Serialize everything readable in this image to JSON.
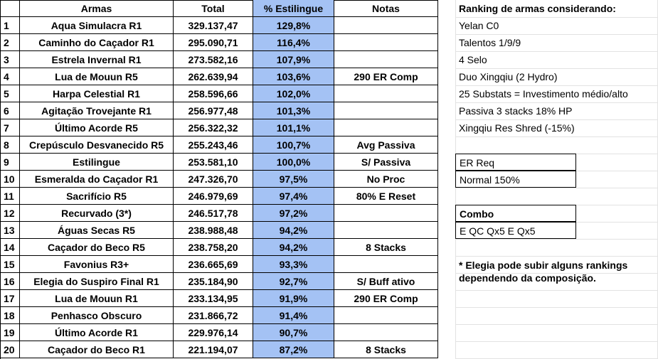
{
  "headers": {
    "num": "",
    "arma": "Armas",
    "total": "Total",
    "pct": "% Estilingue",
    "notas": "Notas"
  },
  "rows": [
    {
      "n": "1",
      "arma": "Aqua Simulacra R1",
      "total": "329.137,47",
      "pct": "129,8%",
      "notas": ""
    },
    {
      "n": "2",
      "arma": "Caminho do Caçador R1",
      "total": "295.090,71",
      "pct": "116,4%",
      "notas": ""
    },
    {
      "n": "3",
      "arma": "Estrela Invernal R1",
      "total": "273.582,16",
      "pct": "107,9%",
      "notas": ""
    },
    {
      "n": "4",
      "arma": "Lua de Mouun R5",
      "total": "262.639,94",
      "pct": "103,6%",
      "notas": "290 ER Comp"
    },
    {
      "n": "5",
      "arma": "Harpa Celestial R1",
      "total": "258.596,66",
      "pct": "102,0%",
      "notas": ""
    },
    {
      "n": "6",
      "arma": "Agitação Trovejante R1",
      "total": "256.977,48",
      "pct": "101,3%",
      "notas": ""
    },
    {
      "n": "7",
      "arma": "Último Acorde R5",
      "total": "256.322,32",
      "pct": "101,1%",
      "notas": ""
    },
    {
      "n": "8",
      "arma": "Crepúsculo Desvanecido R5",
      "total": "255.243,46",
      "pct": "100,7%",
      "notas": "Avg Passiva"
    },
    {
      "n": "9",
      "arma": "Estilingue",
      "total": "253.581,10",
      "pct": "100,0%",
      "notas": "S/ Passiva"
    },
    {
      "n": "10",
      "arma": "Esmeralda do Caçador R1",
      "total": "247.326,70",
      "pct": "97,5%",
      "notas": "No Proc"
    },
    {
      "n": "11",
      "arma": "Sacrifício R5",
      "total": "246.979,69",
      "pct": "97,4%",
      "notas": "80% E Reset"
    },
    {
      "n": "12",
      "arma": "Recurvado (3*)",
      "total": "246.517,78",
      "pct": "97,2%",
      "notas": ""
    },
    {
      "n": "13",
      "arma": "Águas Secas R5",
      "total": "238.988,48",
      "pct": "94,2%",
      "notas": ""
    },
    {
      "n": "14",
      "arma": "Caçador do Beco R5",
      "total": "238.758,20",
      "pct": "94,2%",
      "notas": "8 Stacks"
    },
    {
      "n": "15",
      "arma": "Favonius R3+",
      "total": "236.665,69",
      "pct": "93,3%",
      "notas": ""
    },
    {
      "n": "16",
      "arma": "Elegia do Suspiro Final R1",
      "total": "235.184,90",
      "pct": "92,7%",
      "notas": "S/ Buff ativo"
    },
    {
      "n": "17",
      "arma": "Lua de Mouun R1",
      "total": "233.134,95",
      "pct": "91,9%",
      "notas": "290 ER Comp"
    },
    {
      "n": "18",
      "arma": "Penhasco Obscuro",
      "total": "231.866,72",
      "pct": "91,4%",
      "notas": ""
    },
    {
      "n": "19",
      "arma": "Último Acorde R1",
      "total": "229.976,14",
      "pct": "90,7%",
      "notas": ""
    },
    {
      "n": "20",
      "arma": "Caçador do Beco R1",
      "total": "221.194,07",
      "pct": "87,2%",
      "notas": "8 Stacks"
    }
  ],
  "side": {
    "title": "Ranking de armas considerando:",
    "items": [
      "Yelan C0",
      "Talentos 1/9/9",
      "4 Selo",
      "Duo Xingqiu (2 Hydro)",
      "25 Substats = Investimento médio/alto",
      "Passiva 3 stacks 18% HP",
      "Xingqiu Res Shred (-15%)"
    ],
    "er_title": "ER Req",
    "er_value": "Normal 150%",
    "combo_title": "Combo",
    "combo_value": "E QC Qx5 E Qx5",
    "note_line1": "* Elegia pode subir alguns rankings",
    "note_line2": "dependendo da composição."
  },
  "colors": {
    "highlight": "#a4c2f4",
    "border": "#000000",
    "gridline": "#e2e2e2"
  }
}
